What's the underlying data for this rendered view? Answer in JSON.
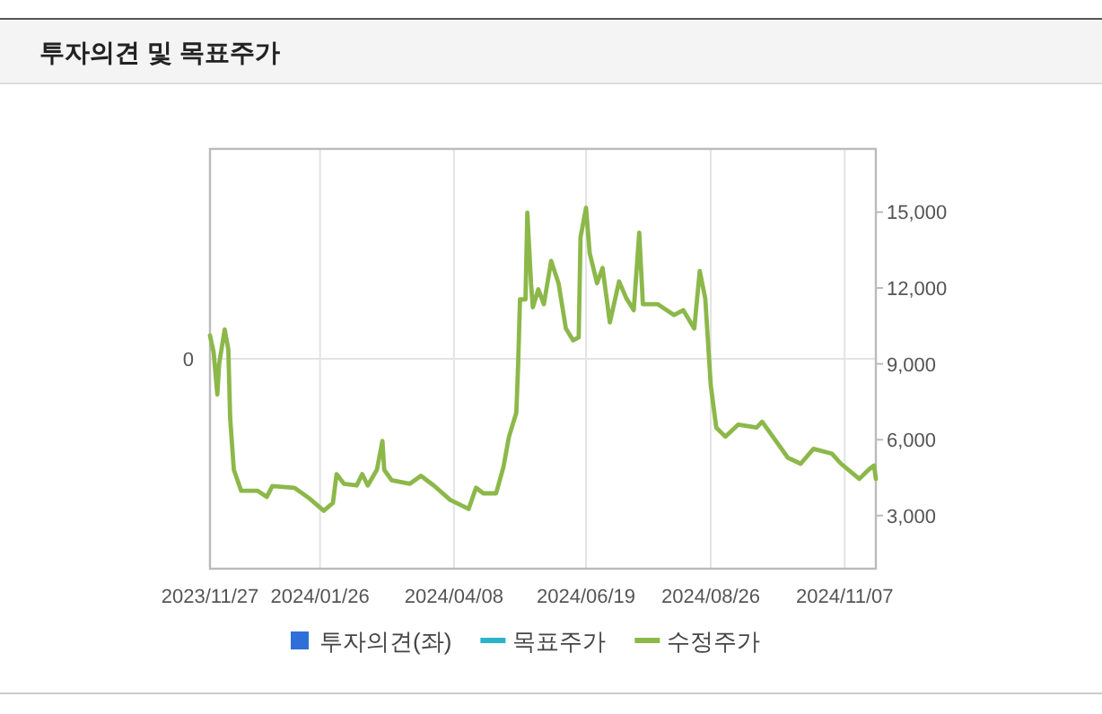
{
  "chart_data": {
    "type": "line",
    "title": "투자의견 및 목표주가",
    "xlim": [
      "2023-11-27",
      "2024-11-24"
    ],
    "xticks": [
      {
        "value": "2023-11-27",
        "label": "2023/11/27"
      },
      {
        "value": "2024-01-26",
        "label": "2024/01/26"
      },
      {
        "value": "2024-04-08",
        "label": "2024/04/08"
      },
      {
        "value": "2024-06-19",
        "label": "2024/06/19"
      },
      {
        "value": "2024-08-26",
        "label": "2024/08/26"
      },
      {
        "value": "2024-11-07",
        "label": "2024/11/07"
      }
    ],
    "annotations": [
      "0"
    ],
    "y2lim": [
      900,
      17500
    ],
    "y2ticks": [
      {
        "value": 3000,
        "label": "3,000"
      },
      {
        "value": 6000,
        "label": "6,000"
      },
      {
        "value": 9000,
        "label": "9,000"
      },
      {
        "value": 12000,
        "label": "12,000"
      },
      {
        "value": 15000,
        "label": "15,000"
      }
    ],
    "grid": true,
    "legend": "bottom",
    "line_style": "solid",
    "series": [
      {
        "name": "투자의견(좌)",
        "type": "bar",
        "color": "#2f6fd8"
      },
      {
        "name": "목표주가",
        "type": "line",
        "axis": "y2",
        "color": "#2bb3c8"
      },
      {
        "name": "수정주가",
        "axis": "y2",
        "color": "#8cb84a",
        "x": [
          "2023-11-27",
          "2023-11-29",
          "2023-12-01",
          "2023-12-02",
          "2023-12-05",
          "2023-12-07",
          "2023-12-08",
          "2023-12-10",
          "2023-12-14",
          "2023-12-23",
          "2023-12-28",
          "2023-12-31",
          "2024-01-12",
          "2024-01-20",
          "2024-01-28",
          "2024-02-02",
          "2024-02-04",
          "2024-02-08",
          "2024-02-15",
          "2024-02-18",
          "2024-02-21",
          "2024-02-26",
          "2024-02-29",
          "2024-03-01",
          "2024-03-05",
          "2024-03-15",
          "2024-03-21",
          "2024-03-28",
          "2024-04-06",
          "2024-04-16",
          "2024-04-20",
          "2024-04-24",
          "2024-05-01",
          "2024-05-05",
          "2024-05-08",
          "2024-05-12",
          "2024-05-13",
          "2024-05-14",
          "2024-05-17",
          "2024-05-18",
          "2024-05-20",
          "2024-05-21",
          "2024-05-24",
          "2024-05-27",
          "2024-05-31",
          "2024-06-04",
          "2024-06-08",
          "2024-06-12",
          "2024-06-15",
          "2024-06-16",
          "2024-06-19",
          "2024-06-21",
          "2024-06-25",
          "2024-06-28",
          "2024-07-02",
          "2024-07-07",
          "2024-07-11",
          "2024-07-15",
          "2024-07-18",
          "2024-07-20",
          "2024-07-28",
          "2024-08-06",
          "2024-08-11",
          "2024-08-17",
          "2024-08-20",
          "2024-08-23",
          "2024-08-26",
          "2024-08-29",
          "2024-09-03",
          "2024-09-10",
          "2024-09-20",
          "2024-09-23",
          "2024-09-30",
          "2024-10-07",
          "2024-10-14",
          "2024-10-21",
          "2024-10-31",
          "2024-11-05",
          "2024-11-15",
          "2024-11-20",
          "2024-11-23",
          "2024-11-24"
        ],
        "values": [
          10120,
          9450,
          7790,
          9000,
          10360,
          9570,
          6860,
          4810,
          3980,
          3980,
          3740,
          4170,
          4100,
          3690,
          3190,
          3500,
          4640,
          4260,
          4190,
          4640,
          4190,
          4810,
          5950,
          4810,
          4400,
          4260,
          4570,
          4190,
          3620,
          3260,
          4100,
          3880,
          3880,
          4930,
          6120,
          7070,
          8980,
          11550,
          11550,
          14980,
          12190,
          11240,
          11950,
          11360,
          13070,
          12190,
          10400,
          9930,
          10050,
          14000,
          15170,
          13380,
          12190,
          12790,
          10640,
          12260,
          11590,
          11120,
          14190,
          11360,
          11360,
          10930,
          11120,
          10400,
          12670,
          11590,
          8140,
          6480,
          6120,
          6600,
          6480,
          6710,
          6000,
          5290,
          5050,
          5640,
          5450,
          5050,
          4450,
          4810,
          4980,
          4450
        ]
      }
    ]
  }
}
